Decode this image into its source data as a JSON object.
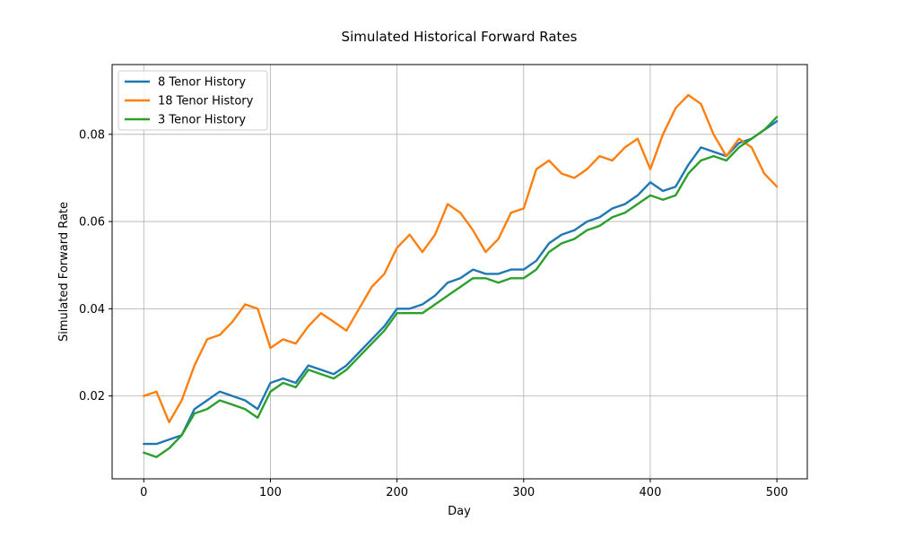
{
  "chart_data": {
    "type": "line",
    "title": "Simulated Historical Forward Rates",
    "xlabel": "Day",
    "ylabel": "Simulated Forward Rate",
    "xlim": [
      -25,
      524
    ],
    "ylim": [
      0.001,
      0.096
    ],
    "xticks": [
      0,
      100,
      200,
      300,
      400,
      500
    ],
    "xtick_labels": [
      "0",
      "100",
      "200",
      "300",
      "400",
      "500"
    ],
    "yticks": [
      0.02,
      0.04,
      0.06,
      0.08
    ],
    "ytick_labels": [
      "0.02",
      "0.04",
      "0.06",
      "0.08"
    ],
    "grid": true,
    "legend_position": "top-left",
    "x": [
      0,
      10,
      20,
      30,
      40,
      50,
      60,
      70,
      80,
      90,
      100,
      110,
      120,
      130,
      140,
      150,
      160,
      170,
      180,
      190,
      200,
      210,
      220,
      230,
      240,
      250,
      260,
      270,
      280,
      290,
      300,
      310,
      320,
      330,
      340,
      350,
      360,
      370,
      380,
      390,
      400,
      410,
      420,
      430,
      440,
      450,
      460,
      470,
      480,
      490,
      500
    ],
    "series": [
      {
        "name": "8 Tenor History",
        "color": "#1f77b4",
        "values": [
          0.009,
          0.009,
          0.01,
          0.011,
          0.017,
          0.019,
          0.021,
          0.02,
          0.019,
          0.017,
          0.023,
          0.024,
          0.023,
          0.027,
          0.026,
          0.025,
          0.027,
          0.03,
          0.033,
          0.036,
          0.04,
          0.04,
          0.041,
          0.043,
          0.046,
          0.047,
          0.049,
          0.048,
          0.048,
          0.049,
          0.049,
          0.051,
          0.055,
          0.057,
          0.058,
          0.06,
          0.061,
          0.063,
          0.064,
          0.066,
          0.069,
          0.067,
          0.068,
          0.073,
          0.077,
          0.076,
          0.075,
          0.078,
          0.079,
          0.081,
          0.083
        ]
      },
      {
        "name": "18 Tenor History",
        "color": "#ff7f0e",
        "values": [
          0.02,
          0.021,
          0.014,
          0.019,
          0.027,
          0.033,
          0.034,
          0.037,
          0.041,
          0.04,
          0.031,
          0.033,
          0.032,
          0.036,
          0.039,
          0.037,
          0.035,
          0.04,
          0.045,
          0.048,
          0.054,
          0.057,
          0.053,
          0.057,
          0.064,
          0.062,
          0.058,
          0.053,
          0.056,
          0.062,
          0.063,
          0.072,
          0.074,
          0.071,
          0.07,
          0.072,
          0.075,
          0.074,
          0.077,
          0.079,
          0.072,
          0.08,
          0.086,
          0.089,
          0.087,
          0.08,
          0.075,
          0.079,
          0.077,
          0.071,
          0.068
        ]
      },
      {
        "name": "3 Tenor History",
        "color": "#2ca02c",
        "values": [
          0.007,
          0.006,
          0.008,
          0.011,
          0.016,
          0.017,
          0.019,
          0.018,
          0.017,
          0.015,
          0.021,
          0.023,
          0.022,
          0.026,
          0.025,
          0.024,
          0.026,
          0.029,
          0.032,
          0.035,
          0.039,
          0.039,
          0.039,
          0.041,
          0.043,
          0.045,
          0.047,
          0.047,
          0.046,
          0.047,
          0.047,
          0.049,
          0.053,
          0.055,
          0.056,
          0.058,
          0.059,
          0.061,
          0.062,
          0.064,
          0.066,
          0.065,
          0.066,
          0.071,
          0.074,
          0.075,
          0.074,
          0.077,
          0.079,
          0.081,
          0.084
        ]
      }
    ]
  }
}
